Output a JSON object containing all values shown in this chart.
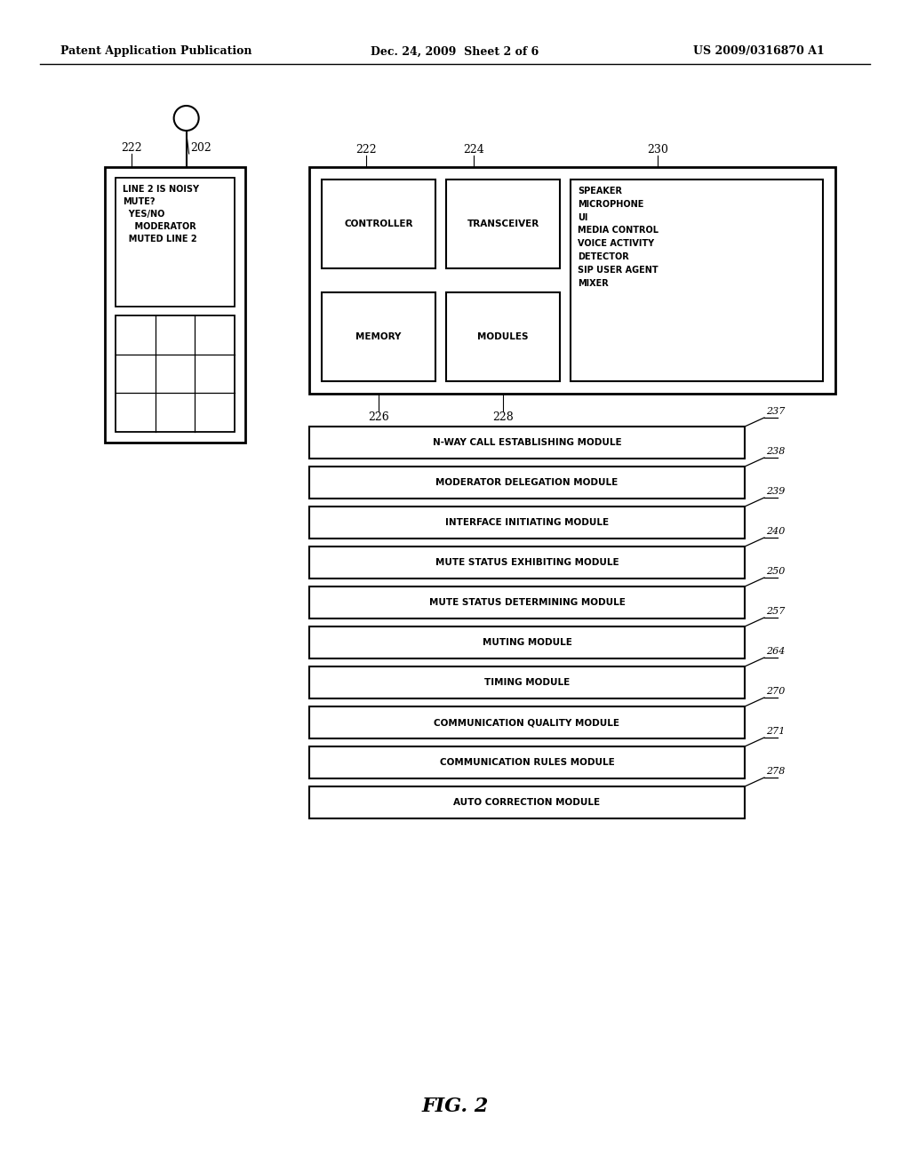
{
  "bg_color": "#ffffff",
  "header_left": "Patent Application Publication",
  "header_mid": "Dec. 24, 2009  Sheet 2 of 6",
  "header_right": "US 2009/0316870 A1",
  "fig_label": "FIG. 2",
  "modules_list": [
    {
      "label": "N-WAY CALL ESTABLISHING MODULE",
      "ref": "237"
    },
    {
      "label": "MODERATOR DELEGATION MODULE",
      "ref": "238"
    },
    {
      "label": "INTERFACE INITIATING MODULE",
      "ref": "239"
    },
    {
      "label": "MUTE STATUS EXHIBITING MODULE",
      "ref": "240"
    },
    {
      "label": "MUTE STATUS DETERMINING MODULE",
      "ref": "250"
    },
    {
      "label": "MUTING MODULE",
      "ref": "257"
    },
    {
      "label": "TIMING MODULE",
      "ref": "264"
    },
    {
      "label": "COMMUNICATION QUALITY MODULE",
      "ref": "270"
    },
    {
      "label": "COMMUNICATION RULES MODULE",
      "ref": "271"
    },
    {
      "label": "AUTO CORRECTION MODULE",
      "ref": "278"
    }
  ]
}
